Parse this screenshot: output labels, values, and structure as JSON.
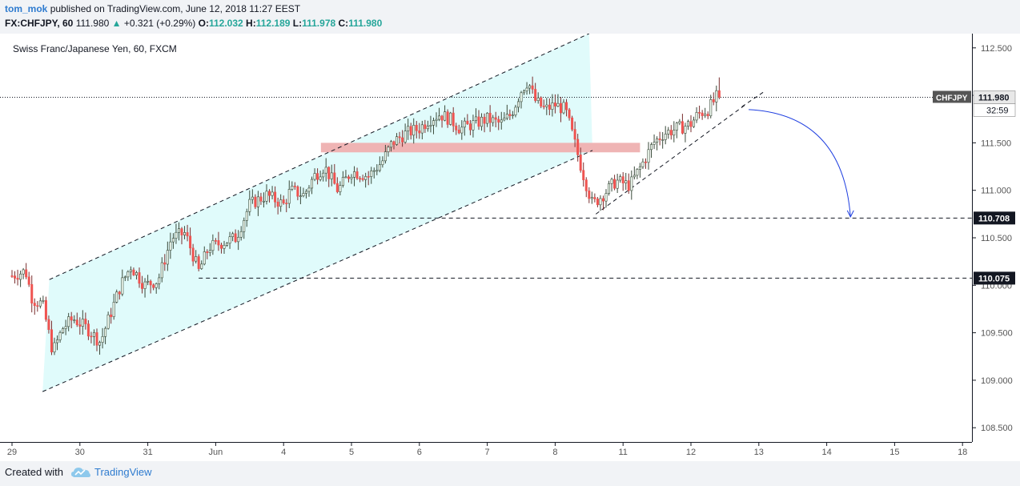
{
  "header": {
    "author": "tom_mok",
    "published": "published on TradingView.com, June 12, 2018 11:27 EEST",
    "symbol_line": "FX:CHFJPY, 60",
    "last": "111.980",
    "change": "+0.321 (+0.29%)",
    "o_label": "O:",
    "o": "112.032",
    "h_label": "H:",
    "h": "112.189",
    "l_label": "L:",
    "l": "111.978",
    "c_label": "C:",
    "c": "111.980"
  },
  "footer": {
    "created_with": "Created with",
    "brand": "TradingView"
  },
  "colors": {
    "up": "#26a69a",
    "down": "#ef5350",
    "channel_fill": "#e0fbfb",
    "zone": "#efb4b4",
    "arrow": "#1f3fe0",
    "brand": "#2e7bcf"
  },
  "chart_data": {
    "type": "candlestick",
    "title": "Swiss Franc/Japanese Yen, 60, FXCM",
    "symbol_tag": "CHFJPY",
    "price_tag": "111.980",
    "countdown": "32:59",
    "ylim": [
      108.35,
      112.65
    ],
    "y_ticks": [
      "112.500",
      "112.000",
      "111.500",
      "111.000",
      "110.500",
      "110.000",
      "109.500",
      "109.000",
      "108.500"
    ],
    "x_ticks": [
      "29",
      "30",
      "31",
      "Jun",
      "4",
      "5",
      "6",
      "7",
      "8",
      "11",
      "12",
      "13",
      "14",
      "15",
      "18"
    ],
    "x_tick_index": [
      0,
      1,
      2,
      3,
      4,
      5,
      6,
      7,
      8,
      9,
      10,
      11,
      12,
      13,
      14
    ],
    "level_labels": [
      "110.708",
      "110.075"
    ],
    "current_price": 111.98,
    "levels": [
      110.708,
      110.075
    ],
    "resistance_zone": [
      111.4,
      111.5
    ],
    "close_path": [
      [
        0,
        110.1
      ],
      [
        0.2,
        110.15
      ],
      [
        0.3,
        109.85
      ],
      [
        0.45,
        109.8
      ],
      [
        0.6,
        109.3
      ],
      [
        0.75,
        109.55
      ],
      [
        0.9,
        109.65
      ],
      [
        1.1,
        109.55
      ],
      [
        1.3,
        109.4
      ],
      [
        1.45,
        109.7
      ],
      [
        1.6,
        110.0
      ],
      [
        1.75,
        110.2
      ],
      [
        1.95,
        110.0
      ],
      [
        2.15,
        110.05
      ],
      [
        2.35,
        110.5
      ],
      [
        2.55,
        110.55
      ],
      [
        2.75,
        110.15
      ],
      [
        2.9,
        110.4
      ],
      [
        3.1,
        110.45
      ],
      [
        3.3,
        110.5
      ],
      [
        3.5,
        110.85
      ],
      [
        3.75,
        110.95
      ],
      [
        4.0,
        110.85
      ],
      [
        4.1,
        111.0
      ],
      [
        4.3,
        110.95
      ],
      [
        4.45,
        111.15
      ],
      [
        4.6,
        111.25
      ],
      [
        4.8,
        111.0
      ],
      [
        5.0,
        111.2
      ],
      [
        5.25,
        111.15
      ],
      [
        5.45,
        111.3
      ],
      [
        5.6,
        111.5
      ],
      [
        5.8,
        111.6
      ],
      [
        6.0,
        111.65
      ],
      [
        6.15,
        111.75
      ],
      [
        6.3,
        111.8
      ],
      [
        6.45,
        111.75
      ],
      [
        6.6,
        111.65
      ],
      [
        6.8,
        111.7
      ],
      [
        7.0,
        111.75
      ],
      [
        7.2,
        111.7
      ],
      [
        7.35,
        111.8
      ],
      [
        7.5,
        112.05
      ],
      [
        7.6,
        112.15
      ],
      [
        7.7,
        111.95
      ],
      [
        7.85,
        111.85
      ],
      [
        8.0,
        111.9
      ],
      [
        8.15,
        111.85
      ],
      [
        8.25,
        111.6
      ],
      [
        8.4,
        111.2
      ],
      [
        8.55,
        110.85
      ],
      [
        8.7,
        110.95
      ],
      [
        8.9,
        111.1
      ],
      [
        9.1,
        111.05
      ],
      [
        9.3,
        111.3
      ],
      [
        9.45,
        111.5
      ],
      [
        9.6,
        111.6
      ],
      [
        9.8,
        111.65
      ],
      [
        10.0,
        111.7
      ],
      [
        10.1,
        111.8
      ],
      [
        10.25,
        111.85
      ],
      [
        10.35,
        111.95
      ],
      [
        10.43,
        112.05
      ]
    ],
    "channel_upper": [
      [
        0.55,
        110.06
      ],
      [
        8.5,
        112.65
      ]
    ],
    "channel_lower": [
      [
        0.45,
        108.88
      ],
      [
        8.55,
        111.42
      ]
    ],
    "channel_fill": [
      [
        0.55,
        110.06
      ],
      [
        8.5,
        112.65
      ],
      [
        8.55,
        111.42
      ],
      [
        0.45,
        108.88
      ]
    ],
    "rising_support": [
      [
        8.6,
        110.75
      ],
      [
        10.8,
        111.9
      ]
    ],
    "rising_resistance": [
      [
        10.75,
        111.88
      ],
      [
        11.1,
        112.05
      ]
    ],
    "arrow_path": [
      [
        10.85,
        111.85
      ],
      [
        12.35,
        110.72
      ]
    ],
    "grid": false,
    "legend": "none"
  }
}
